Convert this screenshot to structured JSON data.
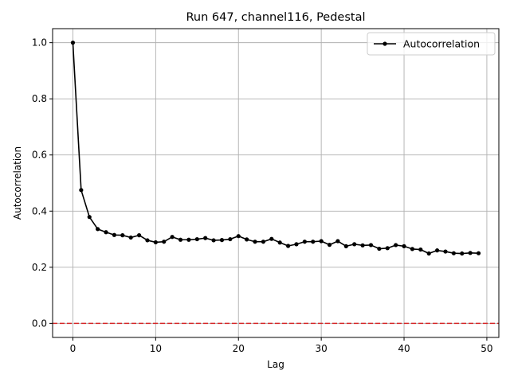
{
  "chart_data": {
    "type": "line",
    "title": "Run 647, channel116, Pedestal",
    "xlabel": "Lag",
    "ylabel": "Autocorrelation",
    "xlim": [
      -2.45,
      51.45
    ],
    "ylim": [
      -0.05,
      1.05
    ],
    "xticks": [
      0,
      10,
      20,
      30,
      40,
      50
    ],
    "yticks": [
      0.0,
      0.2,
      0.4,
      0.6,
      0.8,
      1.0
    ],
    "xtick_labels": [
      "0",
      "10",
      "20",
      "30",
      "40",
      "50"
    ],
    "ytick_labels": [
      "0.0",
      "0.2",
      "0.4",
      "0.6",
      "0.8",
      "1.0"
    ],
    "grid": true,
    "legend": "upper-right",
    "series": [
      {
        "name": "Autocorrelation",
        "color": "#000000",
        "marker": "circle",
        "x": [
          0,
          1,
          2,
          3,
          4,
          5,
          6,
          7,
          8,
          9,
          10,
          11,
          12,
          13,
          14,
          15,
          16,
          17,
          18,
          19,
          20,
          21,
          22,
          23,
          24,
          25,
          26,
          27,
          28,
          29,
          30,
          31,
          32,
          33,
          34,
          35,
          36,
          37,
          38,
          39,
          40,
          41,
          42,
          43,
          44,
          45,
          46,
          47,
          48,
          49
        ],
        "y": [
          1.0,
          0.475,
          0.379,
          0.336,
          0.325,
          0.315,
          0.314,
          0.306,
          0.314,
          0.296,
          0.289,
          0.291,
          0.308,
          0.298,
          0.298,
          0.3,
          0.304,
          0.296,
          0.297,
          0.3,
          0.311,
          0.299,
          0.291,
          0.291,
          0.301,
          0.288,
          0.276,
          0.282,
          0.291,
          0.291,
          0.293,
          0.28,
          0.293,
          0.275,
          0.282,
          0.278,
          0.279,
          0.266,
          0.268,
          0.279,
          0.275,
          0.265,
          0.263,
          0.249,
          0.26,
          0.256,
          0.25,
          0.249,
          0.251,
          0.25
        ]
      }
    ],
    "reference_line": {
      "y": 0.0,
      "color": "#d62728",
      "style": "dashed"
    }
  }
}
